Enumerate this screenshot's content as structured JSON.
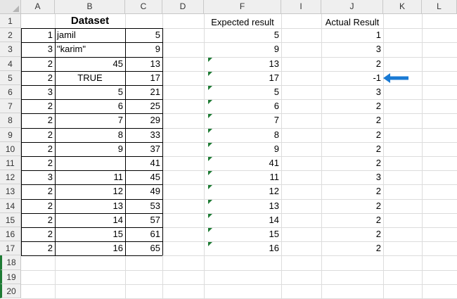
{
  "columns": [
    "A",
    "B",
    "C",
    "D",
    "F",
    "I",
    "J",
    "K",
    "L"
  ],
  "rows": [
    "1",
    "2",
    "3",
    "4",
    "5",
    "6",
    "7",
    "8",
    "9",
    "10",
    "11",
    "12",
    "13",
    "14",
    "15",
    "16",
    "17",
    "18",
    "19",
    "20"
  ],
  "dataset_title": "Dataset",
  "expected_header": "Expected result",
  "actual_header": "Actual Result",
  "dataset": [
    {
      "a": "1",
      "b": "jamil",
      "c": "5"
    },
    {
      "a": "3",
      "b": "\"karim\"",
      "c": "9"
    },
    {
      "a": "2",
      "b": "45",
      "c": "13"
    },
    {
      "a": "2",
      "b": "TRUE",
      "c": "17"
    },
    {
      "a": "3",
      "b": "5",
      "c": "21"
    },
    {
      "a": "2",
      "b": "6",
      "c": "25"
    },
    {
      "a": "2",
      "b": "7",
      "c": "29"
    },
    {
      "a": "2",
      "b": "8",
      "c": "33"
    },
    {
      "a": "2",
      "b": "9",
      "c": "37"
    },
    {
      "a": "2",
      "b": "",
      "c": "41"
    },
    {
      "a": "3",
      "b": "11",
      "c": "45"
    },
    {
      "a": "2",
      "b": "12",
      "c": "49"
    },
    {
      "a": "2",
      "b": "13",
      "c": "53"
    },
    {
      "a": "2",
      "b": "14",
      "c": "57"
    },
    {
      "a": "2",
      "b": "15",
      "c": "61"
    },
    {
      "a": "2",
      "b": "16",
      "c": "65"
    }
  ],
  "expected": [
    "5",
    "9",
    "13",
    "17",
    "5",
    "6",
    "7",
    "8",
    "9",
    "41",
    "11",
    "12",
    "13",
    "14",
    "15",
    "16"
  ],
  "actual": [
    "1",
    "3",
    "2",
    "-1",
    "3",
    "2",
    "2",
    "2",
    "2",
    "2",
    "3",
    "2",
    "2",
    "2",
    "2",
    "2"
  ],
  "arrow_icon": "arrow-left-icon",
  "arrow_color": "#1a7ad4",
  "indicator_color": "#1e7b34"
}
